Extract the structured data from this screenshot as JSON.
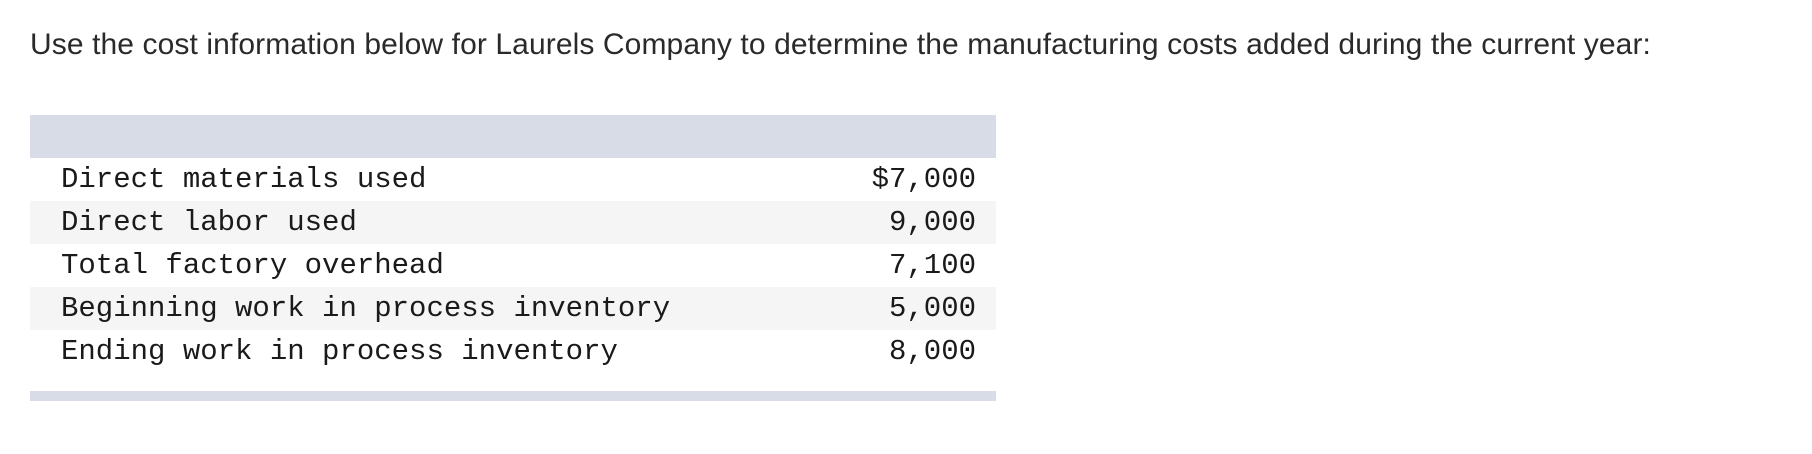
{
  "prompt": "Use the cost information below for Laurels Company to determine the manufacturing costs added during the current year:",
  "table": {
    "rows": [
      {
        "label": "Direct materials used",
        "value": "$7,000"
      },
      {
        "label": "Direct labor used",
        "value": "9,000"
      },
      {
        "label": "Total factory overhead",
        "value": "7,100"
      },
      {
        "label": "Beginning work in process inventory",
        "value": "5,000"
      },
      {
        "label": "Ending work in process inventory",
        "value": "8,000"
      }
    ]
  },
  "colors": {
    "header_band": "#d8dce6",
    "alt_row": "#f5f5f5",
    "text": "#1a1a1a"
  }
}
